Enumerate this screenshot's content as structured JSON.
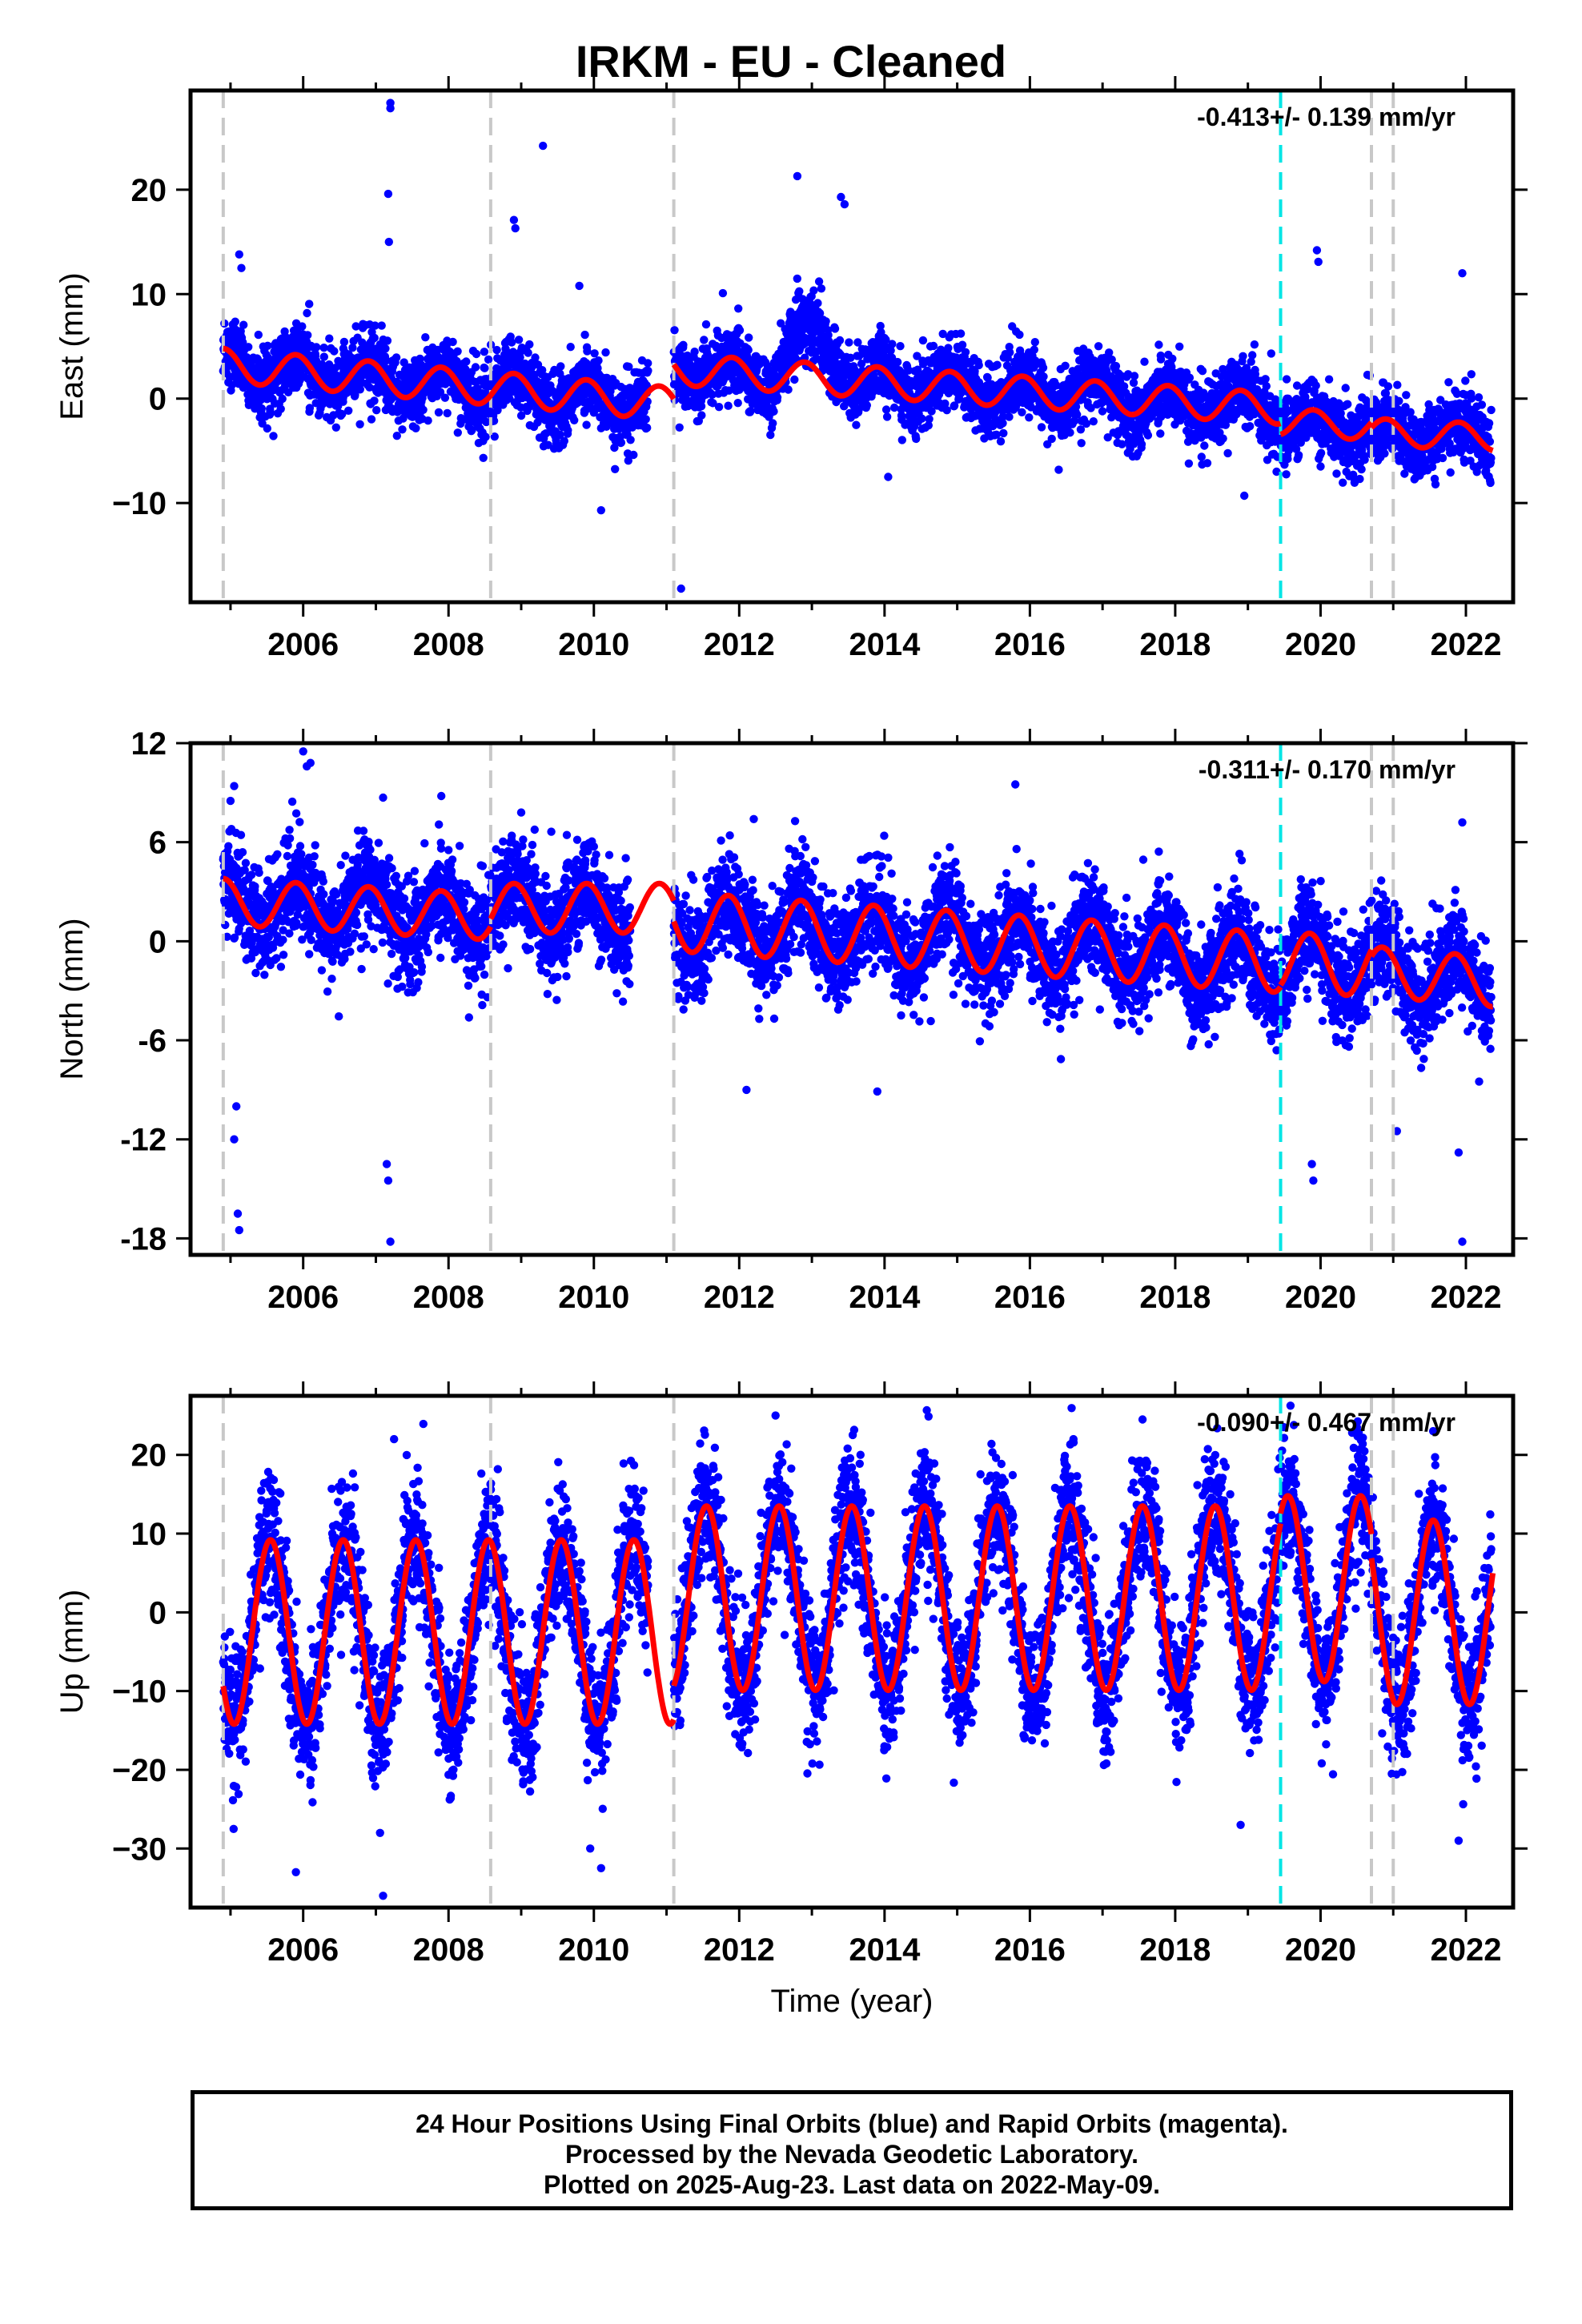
{
  "title": "IRKM  - EU - Cleaned",
  "xlabel": "Time (year)",
  "footer": {
    "line1": "24 Hour Positions Using Final Orbits (blue) and Rapid Orbits (magenta).",
    "line2": "Processed by the Nevada Geodetic Laboratory.",
    "line3": "Plotted on 2025-Aug-23. Last data on 2022-May-09."
  },
  "colors": {
    "data": "#0000ff",
    "model": "#ff0000",
    "break": "#c8c8c8",
    "eq": "#00e5e5"
  },
  "chart_data": [
    {
      "type": "scatter",
      "component": "east",
      "ylabel": "East (mm)",
      "rate_text": "-0.413+/- 0.139 mm/yr",
      "xlim": [
        2004.45,
        2022.65
      ],
      "ylim": [
        -19.5,
        29.5
      ],
      "xticks": [
        2006,
        2008,
        2010,
        2012,
        2014,
        2016,
        2018,
        2020,
        2022
      ],
      "yticks": [
        20,
        10,
        0,
        -10
      ],
      "yticklabels": [
        "20",
        "10",
        "0",
        "−10"
      ],
      "breaks": [
        2004.9,
        2008.58,
        2011.1,
        2020.7,
        2021.0
      ],
      "eq_lines": [
        2019.45
      ],
      "model": {
        "segments": [
          {
            "t0": 2004.9,
            "t1": 2011.1,
            "offset": 3.2,
            "rate": -0.6,
            "amp": 1.6,
            "phase_peak": 0.9
          },
          {
            "t0": 2011.1,
            "t1": 2019.45,
            "offset": 2.8,
            "rate": -0.45,
            "amp": 1.5,
            "phase_peak": 0.9
          },
          {
            "t0": 2019.45,
            "t1": 2020.7,
            "offset": -2.2,
            "rate": -0.4,
            "amp": 1.3,
            "phase_peak": 0.9
          },
          {
            "t0": 2020.7,
            "t1": 2022.37,
            "offset": -3.2,
            "rate": -0.3,
            "amp": 1.3,
            "phase_peak": 0.9
          }
        ]
      },
      "noise": 1.6,
      "gaps": [
        [
          2010.75,
          2011.1
        ]
      ],
      "excursions": [
        {
          "t0": 2012.4,
          "t1": 2013.6,
          "add": 4.0
        }
      ],
      "outliers": [
        [
          2007.2,
          28.3
        ],
        [
          2007.2,
          27.8
        ],
        [
          2007.17,
          19.6
        ],
        [
          2007.18,
          15.0
        ],
        [
          2009.3,
          24.2
        ],
        [
          2008.9,
          17.1
        ],
        [
          2008.92,
          16.3
        ],
        [
          2012.8,
          21.3
        ],
        [
          2013.4,
          19.3
        ],
        [
          2013.45,
          18.6
        ],
        [
          2019.95,
          14.2
        ],
        [
          2019.97,
          13.1
        ],
        [
          2021.95,
          12.0
        ],
        [
          2005.12,
          13.8
        ],
        [
          2005.15,
          12.5
        ],
        [
          2009.8,
          10.8
        ],
        [
          2010.1,
          -10.7
        ],
        [
          2011.2,
          -18.2
        ],
        [
          2014.05,
          -7.5
        ],
        [
          2020.0,
          -6.5
        ],
        [
          2018.95,
          -9.3
        ]
      ]
    },
    {
      "type": "scatter",
      "component": "north",
      "ylabel": "North (mm)",
      "rate_text": "-0.311+/- 0.170 mm/yr",
      "xlim": [
        2004.45,
        2022.65
      ],
      "ylim": [
        -19.0,
        12.0
      ],
      "xticks": [
        2006,
        2008,
        2010,
        2012,
        2014,
        2016,
        2018,
        2020,
        2022
      ],
      "yticks": [
        12,
        6,
        0,
        -6,
        -12,
        -18
      ],
      "yticklabels": [
        "12",
        "6",
        "0",
        "-6",
        "-12",
        "-18"
      ],
      "breaks": [
        2004.9,
        2008.58,
        2011.1,
        2020.7,
        2021.0
      ],
      "eq_lines": [
        2019.45
      ],
      "model": {
        "segments": [
          {
            "t0": 2004.9,
            "t1": 2008.58,
            "offset": 2.4,
            "rate": -0.25,
            "amp": 1.4,
            "phase_peak": 0.9
          },
          {
            "t0": 2008.58,
            "t1": 2011.1,
            "offset": 2.0,
            "rate": 0.0,
            "amp": 1.5,
            "phase_peak": 0.9
          },
          {
            "t0": 2011.1,
            "t1": 2019.45,
            "offset": 1.2,
            "rate": -0.3,
            "amp": 1.8,
            "phase_peak": 0.85
          },
          {
            "t0": 2019.45,
            "t1": 2020.7,
            "offset": -1.2,
            "rate": -0.3,
            "amp": 1.8,
            "phase_peak": 0.85
          },
          {
            "t0": 2020.7,
            "t1": 2022.37,
            "offset": -1.8,
            "rate": -0.4,
            "amp": 1.5,
            "phase_peak": 0.85
          }
        ]
      },
      "noise": 1.5,
      "gaps": [
        [
          2010.5,
          2011.1
        ]
      ],
      "excursions": [],
      "outliers": [
        [
          2005.1,
          -16.5
        ],
        [
          2005.12,
          -17.5
        ],
        [
          2005.05,
          -12.0
        ],
        [
          2005.08,
          -10.0
        ],
        [
          2007.15,
          -13.5
        ],
        [
          2007.17,
          -14.5
        ],
        [
          2007.2,
          -18.2
        ],
        [
          2005.05,
          9.4
        ],
        [
          2005.0,
          8.5
        ],
        [
          2006.0,
          11.5
        ],
        [
          2006.05,
          10.6
        ],
        [
          2006.1,
          10.8
        ],
        [
          2007.1,
          8.7
        ],
        [
          2007.9,
          8.8
        ],
        [
          2015.8,
          9.5
        ],
        [
          2013.9,
          -9.1
        ],
        [
          2012.1,
          -9.0
        ],
        [
          2019.9,
          -14.5
        ],
        [
          2019.88,
          -13.5
        ],
        [
          2021.05,
          -11.5
        ],
        [
          2021.95,
          -18.2
        ],
        [
          2021.9,
          -12.8
        ],
        [
          2021.95,
          7.2
        ],
        [
          2012.2,
          7.4
        ],
        [
          2009.0,
          7.8
        ]
      ]
    },
    {
      "type": "scatter",
      "component": "up",
      "ylabel": "Up (mm)",
      "rate_text": "-0.090+/- 0.467 mm/yr",
      "xlim": [
        2004.45,
        2022.65
      ],
      "ylim": [
        -37.5,
        27.5
      ],
      "xticks": [
        2006,
        2008,
        2010,
        2012,
        2014,
        2016,
        2018,
        2020,
        2022
      ],
      "yticks": [
        20,
        10,
        0,
        -10,
        -20,
        -30
      ],
      "yticklabels": [
        "20",
        "10",
        "0",
        "−10",
        "−20",
        "−30"
      ],
      "breaks": [
        2004.9,
        2008.58,
        2011.1,
        2020.7,
        2021.0
      ],
      "eq_lines": [
        2019.45
      ],
      "model": {
        "segments": [
          {
            "t0": 2004.9,
            "t1": 2011.1,
            "offset": -2.5,
            "rate": 0.0,
            "amp": 11.7,
            "phase_peak": 0.55
          },
          {
            "t0": 2011.1,
            "t1": 2019.45,
            "offset": 1.8,
            "rate": 0.0,
            "amp": 11.7,
            "phase_peak": 0.55
          },
          {
            "t0": 2019.45,
            "t1": 2020.7,
            "offset": 3.0,
            "rate": 0.0,
            "amp": 11.8,
            "phase_peak": 0.55
          },
          {
            "t0": 2020.7,
            "t1": 2022.37,
            "offset": 0.0,
            "rate": 0.0,
            "amp": 11.7,
            "phase_peak": 0.55
          }
        ]
      },
      "noise": 4.2,
      "gaps": [
        [
          2010.75,
          2011.1
        ]
      ],
      "excursions": [],
      "outliers": [
        [
          2005.9,
          -33.0
        ],
        [
          2007.1,
          -36.0
        ],
        [
          2010.1,
          -32.5
        ],
        [
          2009.95,
          -30.0
        ],
        [
          2021.9,
          -29.0
        ],
        [
          2007.25,
          22.0
        ],
        [
          2012.5,
          25.0
        ],
        [
          2016.6,
          22.0
        ],
        [
          2017.55,
          24.5
        ],
        [
          2020.5,
          23.5
        ],
        [
          2018.9,
          -27.0
        ]
      ]
    }
  ]
}
